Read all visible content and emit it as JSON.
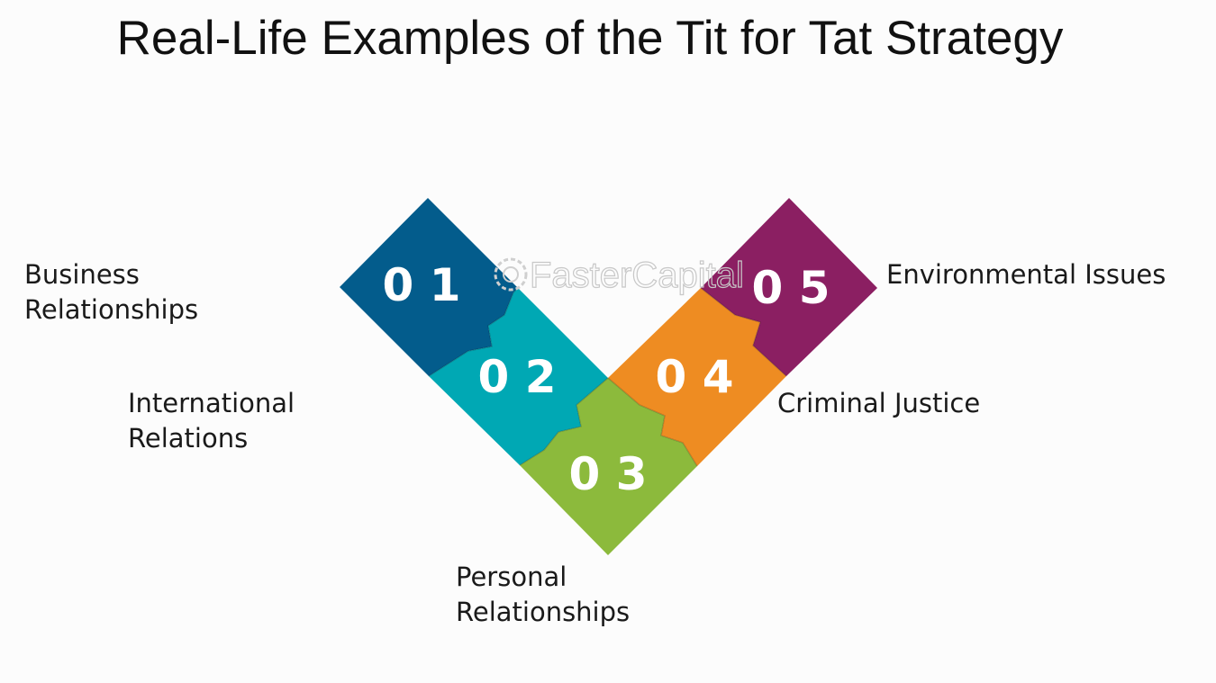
{
  "title": "Real-Life Examples of the Tit for Tat Strategy",
  "watermark": "FasterCapital",
  "steps": [
    {
      "number": "0 1",
      "label_lines": [
        "Business",
        "Relationships"
      ],
      "color": "#035C8C"
    },
    {
      "number": "0 2",
      "label_lines": [
        "International",
        "Relations"
      ],
      "color": "#00A8B4"
    },
    {
      "number": "0 3",
      "label_lines": [
        "Personal",
        "Relationships"
      ],
      "color": "#8CBA3C"
    },
    {
      "number": "0 4",
      "label_lines": [
        "Criminal Justice"
      ],
      "color": "#EE8C22"
    },
    {
      "number": "0 5",
      "label_lines": [
        "Environmental Issues"
      ],
      "color": "#8B1F62"
    }
  ]
}
